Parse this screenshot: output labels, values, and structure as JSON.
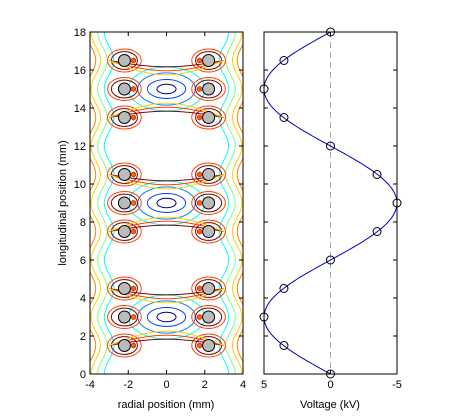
{
  "chart_data": [
    {
      "type": "contour",
      "xlabel": "radial position (mm)",
      "ylabel": "longitudinal position (mm)",
      "xlim": [
        -4,
        4
      ],
      "ylim": [
        0,
        18
      ],
      "xticks": [
        "-4",
        "-2",
        "0",
        "2",
        "4"
      ],
      "yticks": [
        "0",
        "2",
        "4",
        "6",
        "8",
        "10",
        "12",
        "14",
        "16",
        "18"
      ],
      "electrodes": {
        "x": [
          -2.2,
          2.2
        ],
        "y": [
          1.5,
          4.5,
          7.5,
          10.5,
          13.5,
          16.5,
          3.0,
          9.0,
          15.0
        ]
      },
      "minima_centers": [
        {
          "x": 0,
          "y": 3,
          "color": "#0000cc"
        },
        {
          "x": 0,
          "y": 9,
          "color": "#0000cc"
        },
        {
          "x": 0,
          "y": 15,
          "color": "#0000cc"
        }
      ],
      "contour_colors": {
        "low": "#00008f",
        "mid_low": "#0080ff",
        "mid": "#00ffff",
        "mid_high": "#ffd000",
        "high": "#ff4000",
        "max": "#7f0000",
        "green": "#40ff40"
      }
    },
    {
      "type": "line",
      "xlabel": "Voltage (kV)",
      "ylabel": "",
      "xlim": [
        5,
        -5
      ],
      "ylim": [
        0,
        18
      ],
      "xticks": [
        "5",
        "0",
        "-5"
      ],
      "series": [
        {
          "points": [
            [
              0,
              0
            ],
            [
              3.5,
              1.5
            ],
            [
              5,
              3
            ],
            [
              3.5,
              4.5
            ],
            [
              0,
              6
            ],
            [
              -3.5,
              7.5
            ],
            [
              -5,
              9
            ],
            [
              -3.5,
              10.5
            ],
            [
              0,
              12
            ],
            [
              3.5,
              13.5
            ],
            [
              5,
              15
            ],
            [
              3.5,
              16.5
            ],
            [
              0,
              18
            ]
          ],
          "line_color": "#0000cc"
        }
      ],
      "reference_line": {
        "x": 0,
        "style": "dashed",
        "color": "#aaaaaa"
      }
    }
  ]
}
